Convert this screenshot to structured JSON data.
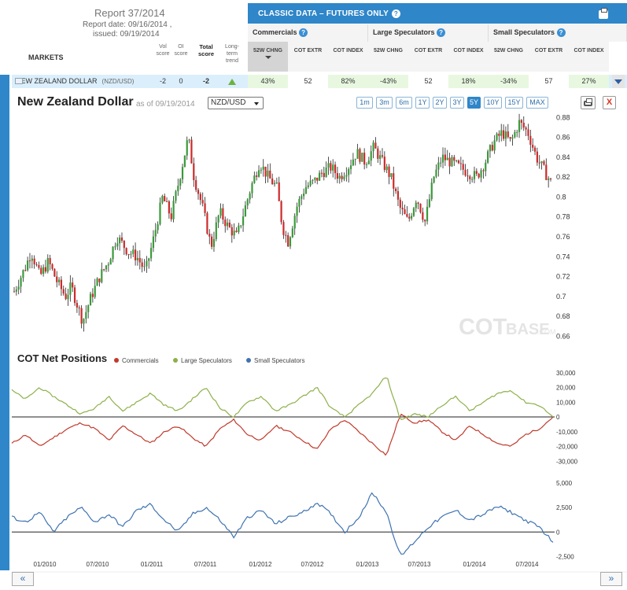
{
  "report": {
    "title": "Report 37/2014",
    "report_date": "Report date:  09/16/2014 ,",
    "issued": "issued:  09/19/2014"
  },
  "table": {
    "markets_label": "MARKETS",
    "cols": {
      "vol": "Vol score",
      "oi": "OI score",
      "total": "Total score",
      "trend": "Long-term trend"
    },
    "classic_title": "CLASSIC DATA – FUTURES ONLY",
    "groups": [
      "Commercials",
      "Large Speculators",
      "Small Speculators"
    ],
    "subcols": [
      "52W CHNG",
      "COT EXTR",
      "COT INDEX"
    ],
    "row": {
      "name": "NEW ZEALAND DOLLAR",
      "symbol": "(NZD/USD)",
      "vol": "-2",
      "oi": "0",
      "total": "-2",
      "values": [
        "43%",
        "52",
        "82%",
        "-43%",
        "52",
        "18%",
        "-34%",
        "57",
        "27%"
      ]
    }
  },
  "chart": {
    "title": "New Zealand Dollar",
    "asof": "as of 09/19/2014",
    "pair": "NZD/USD",
    "ranges": [
      "1m",
      "3m",
      "6m",
      "1Y",
      "2Y",
      "3Y",
      "5Y",
      "10Y",
      "15Y",
      "MAX"
    ],
    "active_range": "5Y",
    "close_label": "X",
    "watermark_a": "COT",
    "watermark_b": "BASE",
    "watermark_c": ".COM",
    "cot_title": "COT Net Positions",
    "legend": [
      "Commercials",
      "Large Speculators",
      "Small Speculators"
    ],
    "nav_prev": "«",
    "nav_next": "»",
    "colors": {
      "up": "#3a9a3a",
      "down": "#cc2a2a",
      "commercials": "#c0392b",
      "large": "#8db04a",
      "small": "#3f73b0",
      "accent": "#2f86c9"
    }
  },
  "chart_data": [
    {
      "type": "candlestick",
      "title": "New Zealand Dollar",
      "ylim": [
        0.65,
        0.885
      ],
      "y_ticks": [
        "0.66",
        "0.68",
        "0.7",
        "0.72",
        "0.74",
        "0.76",
        "0.78",
        "0.8",
        "0.82",
        "0.84",
        "0.86",
        "0.88"
      ],
      "series_points": [
        [
          0.0,
          0.705
        ],
        [
          0.02,
          0.73
        ],
        [
          0.03,
          0.745
        ],
        [
          0.045,
          0.72
        ],
        [
          0.06,
          0.735
        ],
        [
          0.075,
          0.715
        ],
        [
          0.09,
          0.7
        ],
        [
          0.1,
          0.71
        ],
        [
          0.12,
          0.675
        ],
        [
          0.135,
          0.7
        ],
        [
          0.15,
          0.72
        ],
        [
          0.165,
          0.735
        ],
        [
          0.18,
          0.76
        ],
        [
          0.2,
          0.745
        ],
        [
          0.215,
          0.74
        ],
        [
          0.23,
          0.725
        ],
        [
          0.245,
          0.76
        ],
        [
          0.26,
          0.8
        ],
        [
          0.275,
          0.78
        ],
        [
          0.29,
          0.82
        ],
        [
          0.305,
          0.86
        ],
        [
          0.315,
          0.82
        ],
        [
          0.33,
          0.79
        ],
        [
          0.345,
          0.75
        ],
        [
          0.36,
          0.785
        ],
        [
          0.375,
          0.77
        ],
        [
          0.39,
          0.76
        ],
        [
          0.405,
          0.79
        ],
        [
          0.415,
          0.81
        ],
        [
          0.43,
          0.835
        ],
        [
          0.445,
          0.82
        ],
        [
          0.46,
          0.81
        ],
        [
          0.47,
          0.77
        ],
        [
          0.48,
          0.755
        ],
        [
          0.495,
          0.79
        ],
        [
          0.51,
          0.81
        ],
        [
          0.525,
          0.815
        ],
        [
          0.54,
          0.825
        ],
        [
          0.555,
          0.83
        ],
        [
          0.57,
          0.82
        ],
        [
          0.585,
          0.83
        ],
        [
          0.6,
          0.845
        ],
        [
          0.615,
          0.835
        ],
        [
          0.63,
          0.85
        ],
        [
          0.645,
          0.835
        ],
        [
          0.66,
          0.82
        ],
        [
          0.675,
          0.79
        ],
        [
          0.69,
          0.775
        ],
        [
          0.705,
          0.8
        ],
        [
          0.72,
          0.775
        ],
        [
          0.735,
          0.82
        ],
        [
          0.75,
          0.84
        ],
        [
          0.765,
          0.835
        ],
        [
          0.78,
          0.83
        ],
        [
          0.795,
          0.825
        ],
        [
          0.81,
          0.82
        ],
        [
          0.825,
          0.835
        ],
        [
          0.84,
          0.855
        ],
        [
          0.855,
          0.865
        ],
        [
          0.87,
          0.855
        ],
        [
          0.885,
          0.875
        ],
        [
          0.9,
          0.865
        ],
        [
          0.915,
          0.84
        ],
        [
          0.93,
          0.825
        ],
        [
          0.94,
          0.815
        ]
      ]
    },
    {
      "type": "line",
      "title": "COT Net Positions",
      "x_labels": [
        "01/2010",
        "07/2010",
        "01/2011",
        "07/2011",
        "01/2012",
        "07/2012",
        "01/2013",
        "07/2013",
        "01/2014",
        "07/2014"
      ],
      "upper_ylim": [
        -32000,
        32000
      ],
      "upper_ticks": [
        "30,000",
        "20,000",
        "10,000",
        "0",
        "-10,000",
        "-20,000",
        "-30,000"
      ],
      "lower_ylim": [
        -3500,
        6500
      ],
      "lower_ticks": [
        "5,000",
        "2,500",
        "0",
        "-2,500"
      ],
      "series": [
        {
          "name": "Commercials",
          "values": [
            -18000,
            -12000,
            -20000,
            -14000,
            -8000,
            -4000,
            -8000,
            -16000,
            -6000,
            -12000,
            -18000,
            -10000,
            -6000,
            -14000,
            -20000,
            -8000,
            -2000,
            -12000,
            -16000,
            -6000,
            -10000,
            -16000,
            -22000,
            -8000,
            -2000,
            -10000,
            -18000,
            -26000,
            2000,
            -4000,
            -2000,
            -10000,
            -16000,
            -6000,
            -12000,
            -18000,
            -20000,
            -12000,
            -8000,
            0
          ]
        },
        {
          "name": "Large Speculators",
          "values": [
            18000,
            12000,
            20000,
            14000,
            8000,
            2000,
            6000,
            14000,
            4000,
            10000,
            16000,
            8000,
            4000,
            12000,
            20000,
            6000,
            0,
            10000,
            14000,
            4000,
            8000,
            14000,
            20000,
            6000,
            0,
            8000,
            16000,
            28000,
            -2000,
            2000,
            0,
            8000,
            14000,
            4000,
            10000,
            16000,
            18000,
            10000,
            8000,
            0
          ]
        },
        {
          "name": "Small Speculators",
          "values": [
            1500,
            1000,
            2000,
            0,
            1500,
            2500,
            1000,
            1800,
            500,
            2200,
            2800,
            1200,
            0,
            1800,
            2500,
            1200,
            -500,
            1500,
            2200,
            800,
            1500,
            2000,
            3000,
            1800,
            0,
            1500,
            4000,
            2000,
            -2500,
            -1000,
            500,
            1500,
            2200,
            1200,
            1800,
            2600,
            2000,
            1200,
            500,
            -1000
          ]
        }
      ]
    }
  ]
}
